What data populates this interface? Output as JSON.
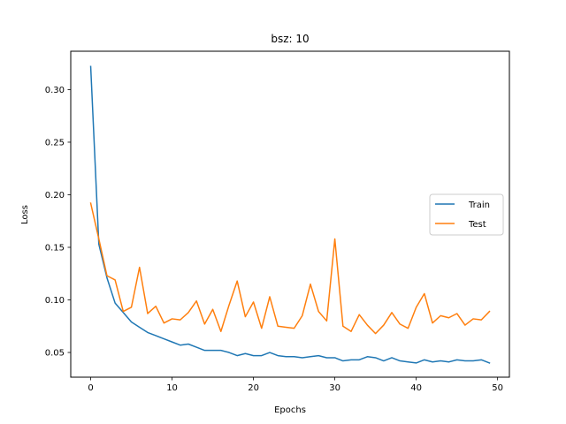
{
  "chart_data": {
    "type": "line",
    "title": "bsz: 10",
    "xlabel": "Epochs",
    "ylabel": "Loss",
    "xlim": [
      -2.45,
      51.45
    ],
    "ylim": [
      0.0265,
      0.3365
    ],
    "xticks": [
      0,
      10,
      20,
      30,
      40,
      50
    ],
    "yticks": [
      0.05,
      0.1,
      0.15,
      0.2,
      0.25,
      0.3
    ],
    "ytick_labels": [
      "0.05",
      "0.10",
      "0.15",
      "0.20",
      "0.25",
      "0.30"
    ],
    "legend_position": "center-right",
    "grid": false,
    "x": [
      0,
      1,
      2,
      3,
      4,
      5,
      6,
      7,
      8,
      9,
      10,
      11,
      12,
      13,
      14,
      15,
      16,
      17,
      18,
      19,
      20,
      21,
      22,
      23,
      24,
      25,
      26,
      27,
      28,
      29,
      30,
      31,
      32,
      33,
      34,
      35,
      36,
      37,
      38,
      39,
      40,
      41,
      42,
      43,
      44,
      45,
      46,
      47,
      48,
      49
    ],
    "series": [
      {
        "name": "Train",
        "color": "#1f77b4",
        "values": [
          0.322,
          0.153,
          0.121,
          0.097,
          0.088,
          0.079,
          0.074,
          0.069,
          0.066,
          0.063,
          0.06,
          0.057,
          0.058,
          0.055,
          0.052,
          0.052,
          0.052,
          0.05,
          0.047,
          0.049,
          0.047,
          0.047,
          0.05,
          0.047,
          0.046,
          0.046,
          0.045,
          0.046,
          0.047,
          0.045,
          0.045,
          0.042,
          0.043,
          0.043,
          0.046,
          0.045,
          0.042,
          0.045,
          0.042,
          0.041,
          0.04,
          0.043,
          0.041,
          0.042,
          0.041,
          0.043,
          0.042,
          0.042,
          0.043,
          0.04
        ]
      },
      {
        "name": "Test",
        "color": "#ff7f0e",
        "values": [
          0.192,
          0.158,
          0.123,
          0.119,
          0.089,
          0.093,
          0.131,
          0.087,
          0.094,
          0.078,
          0.082,
          0.081,
          0.088,
          0.099,
          0.077,
          0.091,
          0.07,
          0.095,
          0.118,
          0.084,
          0.098,
          0.073,
          0.103,
          0.075,
          0.074,
          0.073,
          0.085,
          0.115,
          0.089,
          0.08,
          0.158,
          0.075,
          0.07,
          0.086,
          0.076,
          0.068,
          0.076,
          0.088,
          0.077,
          0.073,
          0.093,
          0.106,
          0.078,
          0.085,
          0.083,
          0.087,
          0.076,
          0.082,
          0.081,
          0.089
        ]
      }
    ]
  }
}
